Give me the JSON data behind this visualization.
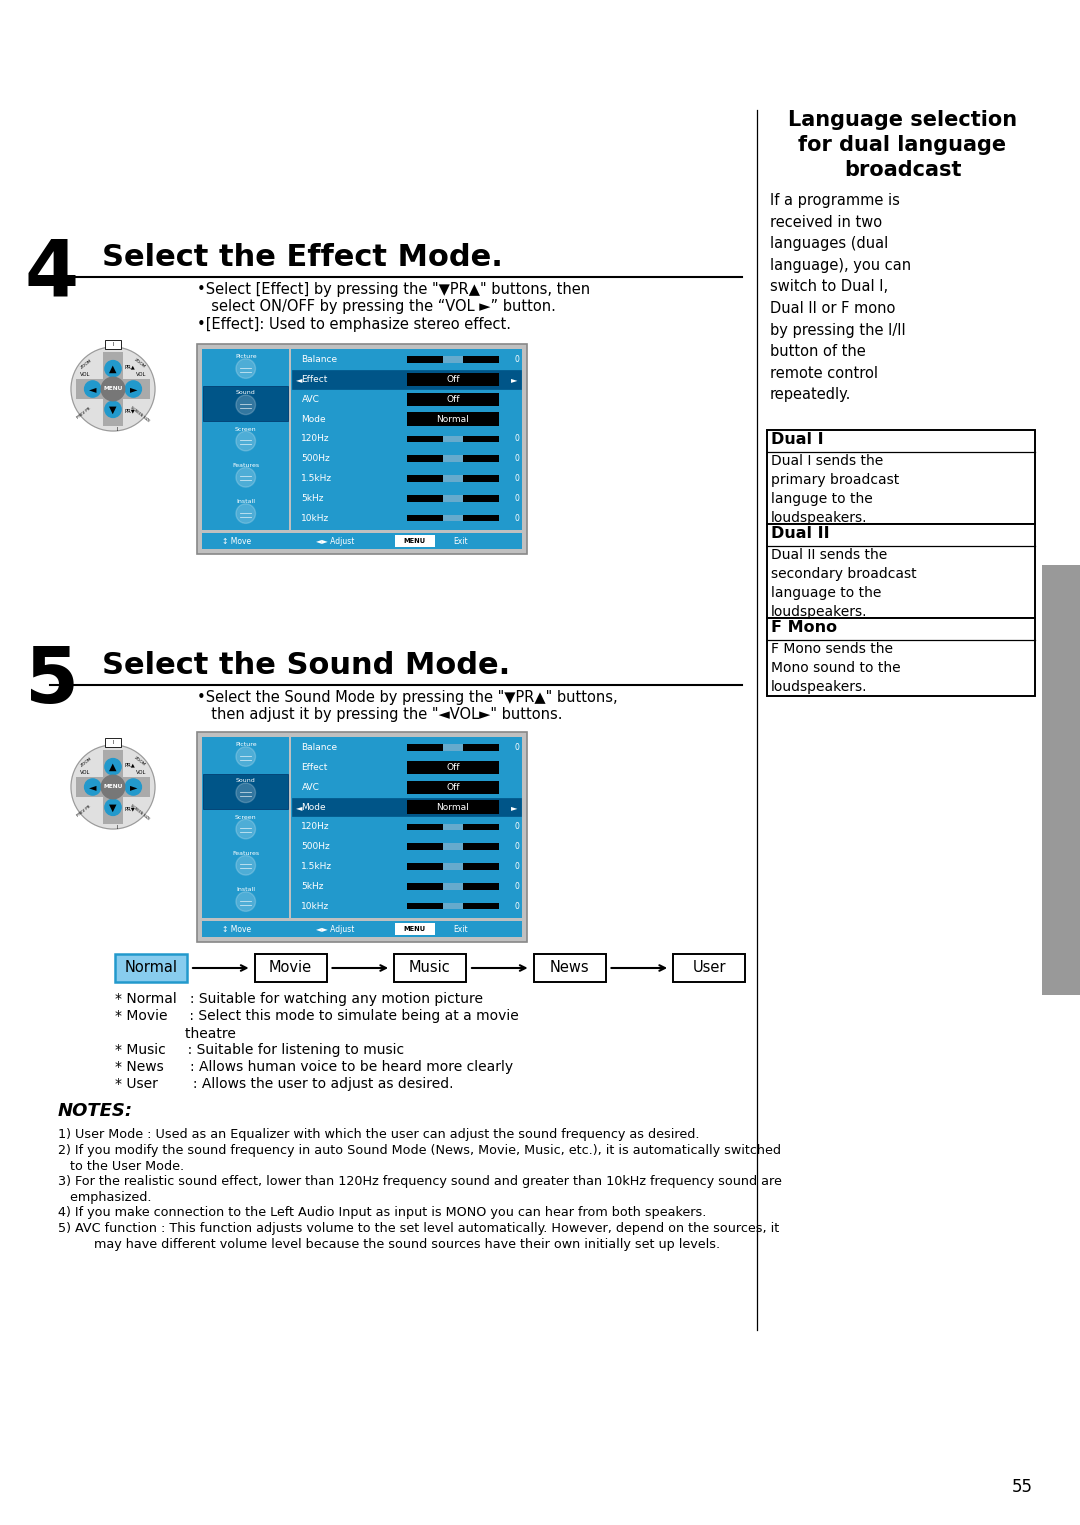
{
  "bg_color": "#ffffff",
  "page_number": "55",
  "section4_title": "Select the Effect Mode.",
  "section5_title": "Select the Sound Mode.",
  "right_title_lines": [
    "Language selection",
    "for dual language",
    "broadcast"
  ],
  "right_body": "If a programme is\nreceived in two\nlanguages (dual\nlanguage), you can\nswitch to Dual I,\nDual II or F mono\nby pressing the I/II\nbutton of the\nremote control\nrepeatedly.",
  "dual1_title": "Dual I",
  "dual1_body": "Dual I sends the\nprimary broadcast\nlanguge to the\nloudspeakers.",
  "dual2_title": "Dual II",
  "dual2_body": "Dual II sends the\nsecondary broadcast\nlanguage to the\nloudspeakers.",
  "fmono_title": "F Mono",
  "fmono_body": "F Mono sends the\nMono sound to the\nloudspeakers.",
  "effect_bullet1a": "•Select [Effect] by pressing the \"▼PR▲\" buttons, then",
  "effect_bullet1b": "  select ON/OFF by pressing the “VOL ►” button.",
  "effect_bullet2": "•[Effect]: Used to emphasize stereo effect.",
  "sound_bullet1a": "•Select the Sound Mode by pressing the \"▼PR▲\" buttons,",
  "sound_bullet1b": "  then adjust it by pressing the \"◄VOL►\" buttons.",
  "menu_rows": [
    "Balance",
    "Effect",
    "AVC",
    "Mode",
    "120Hz",
    "500Hz",
    "1.5kHz",
    "5kHz",
    "10kHz"
  ],
  "effect_highlighted_row": "Effect",
  "sound_highlighted_row": "Mode",
  "effect_row_values": {
    "Effect": "Off",
    "AVC": "Off",
    "Mode": "Normal"
  },
  "sound_row_values": {
    "Effect": "Off",
    "AVC": "Off",
    "Mode": "Normal"
  },
  "icon_labels": [
    "Picture",
    "Sound",
    "Screen",
    "Features",
    "Install"
  ],
  "mode_buttons": [
    "Normal",
    "Movie",
    "Music",
    "News",
    "User"
  ],
  "mode_highlighted": "Normal",
  "notes_title": "NOTES:",
  "note1": "1) User Mode : Used as an Equalizer with which the user can adjust the sound frequency as desired.",
  "note2": "2) If you modify the sound frequency in auto Sound Mode (News, Movie, Music, etc.), it is automatically switched\n   to the User Mode.",
  "note3": "3) For the realistic sound effect, lower than 120Hz frequency sound and greater than 10kHz frequency sound are\n   emphasized.",
  "note4": "4) If you make connection to the Left Audio Input as input is MONO you can hear from both speakers.",
  "note5": "5) AVC function : This function adjusts volume to the set level automatically. However, depend on the sources, it\n         may have different volume level because the sound sources have their own initially set up levels.",
  "normal_desc1": "* Normal   : Suitable for watching any motion picture",
  "movie_desc1": "* Movie     : Select this mode to simulate being at a movie",
  "movie_desc2": "                theatre",
  "music_desc1": "* Music     : Suitable for listening to music",
  "news_desc1": "* News      : Allows human voice to be heard more clearly",
  "user_desc1": "* User        : Allows the user to adjust as desired.",
  "blue_color": "#2299cc",
  "dark_blue": "#005588",
  "light_blue": "#88ccee",
  "slider_blue": "#66aacc",
  "menu_outer_bg": "#c0c0c0",
  "sidebar_color": "#999999"
}
